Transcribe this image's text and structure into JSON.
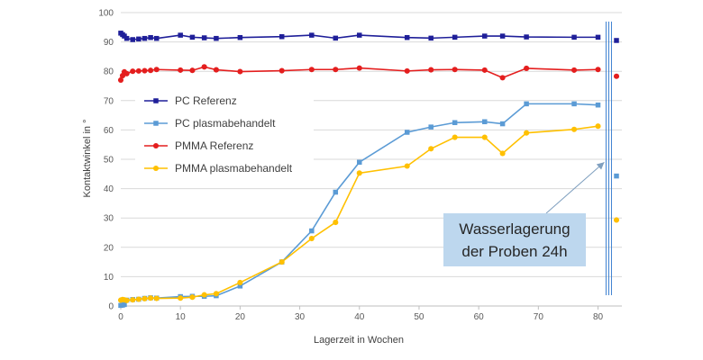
{
  "chart_data": {
    "type": "line",
    "xlabel": "Lagerzeit in Wochen",
    "ylabel": "Kontaktwinkel in °",
    "xlim": [
      0,
      84
    ],
    "ylim": [
      0,
      100
    ],
    "x_ticks": [
      "0",
      "10",
      "20",
      "30",
      "40",
      "50",
      "60",
      "70",
      "80"
    ],
    "y_ticks": [
      "0",
      "10",
      "20",
      "30",
      "40",
      "50",
      "60",
      "70",
      "80",
      "90",
      "100"
    ],
    "grid": "horizontal",
    "legend": "left, inside plot area",
    "series": [
      {
        "name": "PC Referenz",
        "color": "#1F1F99",
        "marker": "square",
        "x": [
          0,
          0.3,
          0.6,
          1,
          2,
          3,
          4,
          5,
          6,
          10,
          12,
          14,
          16,
          20,
          27,
          32,
          36,
          40,
          48,
          52,
          56,
          61,
          64,
          68,
          76,
          80
        ],
        "y": [
          93,
          92.5,
          92,
          91.2,
          90.8,
          91,
          91.2,
          91.5,
          91.2,
          92.3,
          91.6,
          91.4,
          91.2,
          91.5,
          91.8,
          92.3,
          91.3,
          92.3,
          91.5,
          91.3,
          91.6,
          92,
          92,
          91.7,
          91.6,
          91.6
        ],
        "after_storage": 90.5
      },
      {
        "name": "PC plasmabehandelt",
        "color": "#5B9BD5",
        "marker": "square",
        "x": [
          0,
          0.3,
          0.6,
          1,
          2,
          3,
          4,
          5,
          6,
          10,
          12,
          14,
          16,
          20,
          27,
          32,
          36,
          40,
          48,
          52,
          56,
          61,
          64,
          68,
          76,
          80
        ],
        "y": [
          0.2,
          0.3,
          0.5,
          2,
          2.2,
          2.3,
          2.6,
          2.8,
          2.7,
          3.2,
          3.3,
          3.3,
          3.5,
          6.8,
          15,
          25.6,
          38.8,
          49,
          59.2,
          61,
          62.5,
          62.8,
          62.1,
          68.9,
          68.9,
          68.5
        ],
        "after_storage": 44.3
      },
      {
        "name": "PMMA Referenz",
        "color": "#E41E1E",
        "marker": "circle",
        "x": [
          0,
          0.3,
          0.6,
          1,
          2,
          3,
          4,
          5,
          6,
          10,
          12,
          14,
          16,
          20,
          27,
          32,
          36,
          40,
          48,
          52,
          56,
          61,
          64,
          68,
          76,
          80
        ],
        "y": [
          77,
          78.5,
          79.8,
          79.2,
          80,
          80.1,
          80.2,
          80.3,
          80.6,
          80.4,
          80.3,
          81.5,
          80.5,
          79.9,
          80.2,
          80.6,
          80.6,
          81.1,
          80.1,
          80.5,
          80.6,
          80.4,
          77.8,
          81,
          80.4,
          80.6
        ],
        "after_storage": 78.3
      },
      {
        "name": "PMMA plasmabehandelt",
        "color": "#FFC000",
        "marker": "circle",
        "x": [
          0,
          0.3,
          0.6,
          1,
          2,
          3,
          4,
          5,
          6,
          10,
          12,
          14,
          16,
          20,
          27,
          32,
          36,
          40,
          48,
          52,
          56,
          61,
          64,
          68,
          76,
          80
        ],
        "y": [
          2,
          2.2,
          2.1,
          1.9,
          2.1,
          2.3,
          2.5,
          2.7,
          2.6,
          2.7,
          3,
          3.8,
          4.2,
          8,
          15,
          23,
          28.5,
          45.3,
          47.7,
          53.6,
          57.5,
          57.5,
          52,
          59,
          60.2,
          61.3
        ],
        "after_storage": 29.3
      }
    ],
    "annotations": [
      {
        "text_line1": "Wasserlagerung",
        "text_line2": "der Proben 24h",
        "arrow_to_x": 81.5,
        "arrow_to_y": 49
      }
    ]
  }
}
